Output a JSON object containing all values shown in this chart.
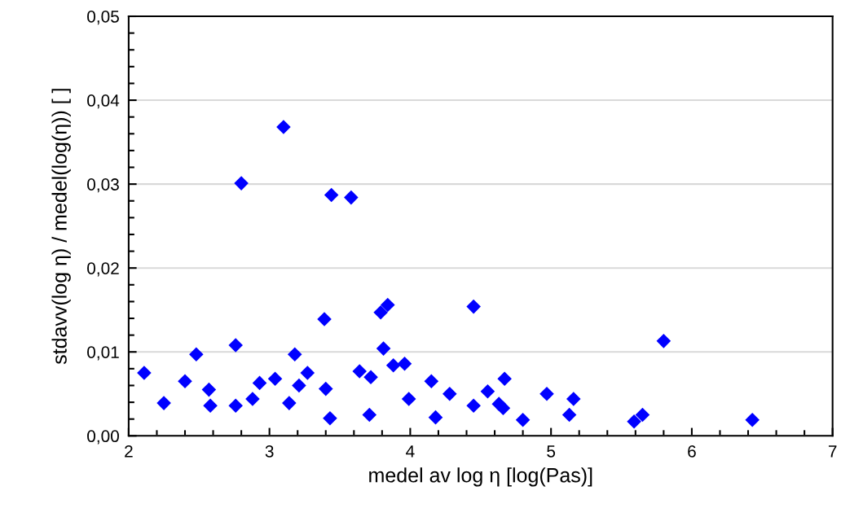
{
  "chart_data": {
    "type": "scatter",
    "xlabel": "medel av log η [log(Pas)]",
    "ylabel": "stdavv(log η) / medel(log(η)) [ ]",
    "x": [
      2.11,
      2.25,
      2.4,
      2.48,
      2.57,
      2.58,
      2.76,
      2.76,
      2.8,
      2.88,
      2.93,
      3.04,
      3.1,
      3.14,
      3.18,
      3.21,
      3.27,
      3.39,
      3.4,
      3.43,
      3.44,
      3.58,
      3.64,
      3.71,
      3.72,
      3.79,
      3.81,
      3.84,
      3.88,
      3.96,
      3.99,
      4.15,
      4.18,
      4.28,
      4.45,
      4.45,
      4.55,
      4.63,
      4.66,
      4.67,
      4.8,
      4.97,
      5.13,
      5.16,
      5.59,
      5.65,
      5.8,
      6.43
    ],
    "series": [
      {
        "color": "#0000ff",
        "values": [
          0.0075,
          0.0039,
          0.0065,
          0.0097,
          0.0055,
          0.0036,
          0.0108,
          0.0036,
          0.0301,
          0.0044,
          0.0063,
          0.0068,
          0.0368,
          0.0039,
          0.0097,
          0.006,
          0.0075,
          0.0139,
          0.0056,
          0.0021,
          0.0287,
          0.0284,
          0.0077,
          0.0025,
          0.007,
          0.0147,
          0.0104,
          0.0156,
          0.0084,
          0.0086,
          0.0044,
          0.0065,
          0.0022,
          0.005,
          0.0154,
          0.0036,
          0.0053,
          0.0038,
          0.0033,
          0.0068,
          0.0019,
          0.005,
          0.0025,
          0.0044,
          0.0017,
          0.0025,
          0.0113,
          0.0019
        ]
      }
    ],
    "xlim": [
      2,
      7
    ],
    "xticks": [
      2,
      3,
      4,
      5,
      6,
      7
    ],
    "ylim": [
      0,
      0.05
    ],
    "yticks": [
      {
        "value": 0,
        "label": "0,00"
      },
      {
        "value": 0.01,
        "label": "0,01"
      },
      {
        "value": 0.02,
        "label": "0,02"
      },
      {
        "value": 0.03,
        "label": "0,03"
      },
      {
        "value": 0.04,
        "label": "0,04"
      },
      {
        "value": 0.05,
        "label": "0,05"
      }
    ],
    "grid": "y",
    "marker": "diamond"
  }
}
